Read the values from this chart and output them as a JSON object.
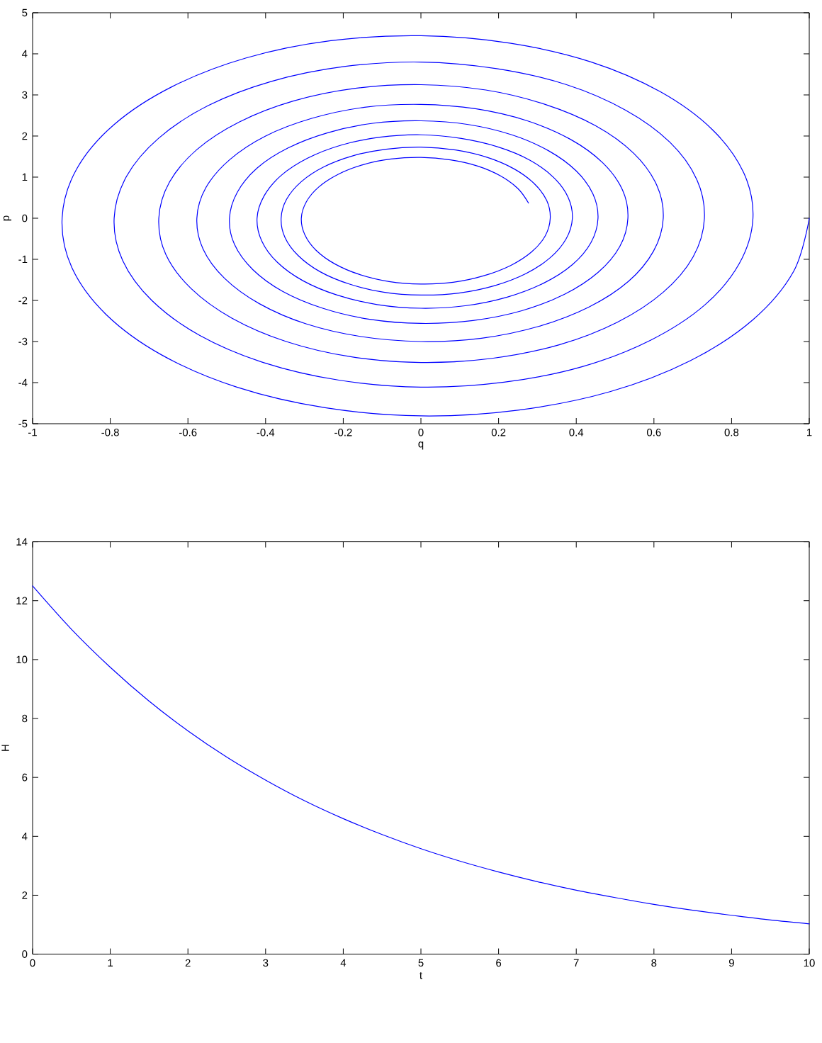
{
  "chart_data": [
    {
      "type": "line",
      "xlabel": "q",
      "ylabel": "p",
      "color": "#0000ff",
      "x": [
        1,
        0.96,
        0.855,
        0.693,
        0.487,
        0.25,
        0,
        -0.247,
        -0.474,
        -0.667,
        -0.811,
        -0.899,
        -0.924,
        -0.887,
        -0.79,
        -0.641,
        -0.45,
        -0.232,
        0,
        0.229,
        0.439,
        0.616,
        0.75,
        0.831,
        0.855,
        0.82,
        0.731,
        0.593,
        0.416,
        0.214,
        0,
        -0.211,
        -0.406,
        -0.57,
        -0.693,
        -0.768,
        -0.79,
        -0.758,
        -0.675,
        -0.548,
        -0.385,
        -0.198,
        0,
        0.195,
        0.375,
        0.527,
        0.641,
        0.71,
        0.73,
        0.701,
        0.624,
        0.506,
        0.356,
        0.183,
        0,
        -0.181,
        -0.347,
        -0.487,
        -0.592,
        -0.657,
        -0.675,
        -0.648,
        -0.577,
        -0.468,
        -0.329,
        -0.169,
        0,
        0.167,
        0.32,
        0.45,
        0.548,
        0.607,
        0.624,
        0.599,
        0.534,
        0.433,
        0.304,
        0.156,
        0,
        -0.154,
        -0.296,
        -0.416,
        -0.506,
        -0.561,
        -0.577,
        -0.554,
        -0.493,
        -0.4,
        -0.281,
        -0.145,
        0,
        0.143,
        0.274,
        0.385,
        0.468,
        0.519,
        0.533,
        0.512,
        0.456,
        0.37,
        0.26,
        0.134,
        0,
        -0.132,
        -0.253,
        -0.356,
        -0.433,
        -0.48,
        -0.493,
        -0.473,
        -0.422,
        -0.342,
        -0.24,
        -0.124,
        0,
        0.122,
        0.234,
        0.329,
        0.4,
        0.443,
        0.456,
        0.438,
        0.39,
        0.316,
        0.222,
        0.114,
        0,
        -0.113,
        -0.216,
        -0.304,
        -0.37,
        -0.41,
        -0.422,
        -0.404,
        -0.36,
        -0.292,
        -0.205,
        -0.106,
        0,
        0.104,
        0.2,
        0.281,
        0.342,
        0.379,
        0.39,
        0.374,
        0.333,
        0.27,
        0.19,
        0.098,
        0,
        -0.096,
        -0.185,
        -0.26,
        -0.316,
        -0.35,
        -0.36,
        -0.346,
        -0.308,
        -0.25,
        -0.175,
        -0.09,
        0,
        0.089,
        0.171,
        0.24,
        0.292,
        0.324,
        0.333,
        0.32,
        0.285,
        0.231,
        0.162,
        0.083,
        0,
        -0.082,
        -0.158,
        -0.222,
        -0.27,
        -0.299,
        -0.308,
        -0.295,
        -0.263,
        -0.213,
        -0.15,
        -0.077,
        0,
        0.076,
        0.146,
        0.205,
        0.25,
        0.277
      ],
      "values": [
        0,
        -1.29,
        -2.47,
        -3.47,
        -4.22,
        -4.67,
        -4.81,
        -4.61,
        -4.11,
        -3.33,
        -2.34,
        -1.2,
        0,
        1.19,
        2.28,
        3.2,
        3.9,
        4.32,
        4.44,
        4.26,
        3.8,
        3.08,
        2.16,
        1.11,
        0,
        -1.1,
        -2.11,
        -2.96,
        -3.61,
        -3.99,
        -4.11,
        -3.94,
        -3.51,
        -2.85,
        -2.0,
        -1.03,
        0,
        1.02,
        1.95,
        2.74,
        3.33,
        3.69,
        3.8,
        3.64,
        3.25,
        2.63,
        1.85,
        0.95,
        0,
        -0.94,
        -1.8,
        -2.53,
        -3.08,
        -3.41,
        -3.51,
        -3.37,
        -3.0,
        -2.43,
        -1.71,
        -0.88,
        0,
        0.87,
        1.67,
        2.34,
        2.85,
        3.16,
        3.25,
        3.12,
        2.77,
        2.25,
        1.58,
        0.81,
        0,
        -0.8,
        -1.54,
        -2.16,
        -2.63,
        -2.92,
        -3.0,
        -2.88,
        -2.57,
        -2.08,
        -1.46,
        -0.75,
        0,
        0.74,
        1.42,
        2.0,
        2.43,
        2.7,
        2.77,
        2.66,
        2.37,
        1.92,
        1.35,
        0.69,
        0,
        -0.69,
        -1.32,
        -1.85,
        -2.25,
        -2.49,
        -2.56,
        -2.46,
        -2.19,
        -1.78,
        -1.25,
        -0.64,
        0,
        0.63,
        1.22,
        1.71,
        2.08,
        2.31,
        2.37,
        2.28,
        2.03,
        1.64,
        1.15,
        0.59,
        0,
        -0.59,
        -1.13,
        -1.58,
        -1.92,
        -2.13,
        -2.19,
        -2.1,
        -1.87,
        -1.52,
        -1.07,
        -0.55,
        0,
        0.54,
        1.04,
        1.46,
        1.78,
        1.97,
        2.03,
        1.94,
        1.73,
        1.41,
        0.99,
        0.51,
        0,
        -0.5,
        -0.96,
        -1.35,
        -1.64,
        -1.82,
        -1.87,
        -1.8,
        -1.6,
        -1.3,
        -0.91,
        -0.47,
        0,
        0.46,
        0.89,
        1.25,
        1.52,
        1.68,
        1.73,
        1.66,
        1.48,
        1.2,
        0.84,
        0.43,
        0,
        -0.43,
        -0.82,
        -1.15,
        -1.4,
        -1.56,
        -1.6,
        -1.54,
        -1.37,
        -1.11,
        -0.78,
        -0.4,
        0,
        0.4,
        0.76,
        1.07,
        1.3,
        1.44,
        1.48,
        1.42,
        1.27,
        1.03,
        0.72,
        0.37
      ],
      "xlim": [
        -1,
        1
      ],
      "ylim": [
        -5,
        5
      ],
      "xticks": [
        -1,
        -0.8,
        -0.6,
        -0.4,
        -0.2,
        0,
        0.2,
        0.4,
        0.6,
        0.8,
        1
      ],
      "yticks": [
        -5,
        -4,
        -3,
        -2,
        -1,
        0,
        1,
        2,
        3,
        4,
        5
      ]
    },
    {
      "type": "line",
      "xlabel": "t",
      "ylabel": "H",
      "color": "#0000ff",
      "x": [
        0,
        0.5,
        1,
        1.5,
        2,
        2.5,
        3,
        3.5,
        4,
        4.5,
        5,
        5.5,
        6,
        6.5,
        7,
        7.5,
        8,
        8.5,
        9,
        9.5,
        10
      ],
      "values": [
        12.5,
        11.03,
        9.74,
        8.59,
        7.58,
        6.69,
        5.91,
        5.21,
        4.6,
        4.06,
        3.58,
        3.16,
        2.79,
        2.46,
        2.17,
        1.92,
        1.69,
        1.49,
        1.32,
        1.16,
        1.03
      ],
      "xlim": [
        0,
        10
      ],
      "ylim": [
        0,
        14
      ],
      "xticks": [
        0,
        1,
        2,
        3,
        4,
        5,
        6,
        7,
        8,
        9,
        10
      ],
      "yticks": [
        0,
        2,
        4,
        6,
        8,
        10,
        12,
        14
      ]
    }
  ]
}
